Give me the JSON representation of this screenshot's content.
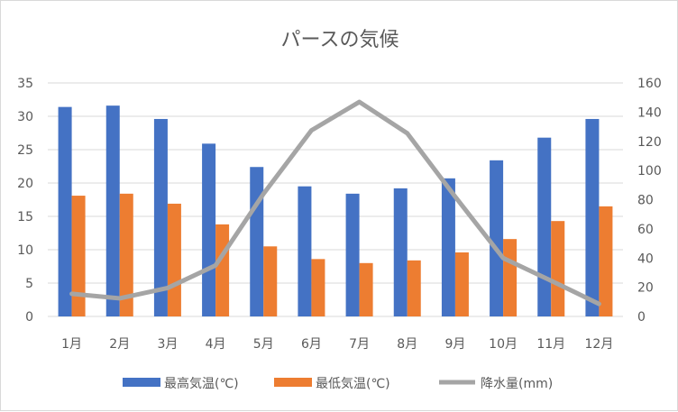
{
  "chart_data": {
    "type": "bar+line",
    "title": "パースの気候",
    "categories": [
      "1月",
      "2月",
      "3月",
      "4月",
      "5月",
      "6月",
      "7月",
      "8月",
      "9月",
      "10月",
      "11月",
      "12月"
    ],
    "series": [
      {
        "name": "最高気温(℃)",
        "type": "bar",
        "axis": "left",
        "color": "#4472c4",
        "values": [
          31.4,
          31.6,
          29.6,
          25.9,
          22.4,
          19.5,
          18.4,
          19.2,
          20.7,
          23.4,
          26.8,
          29.6
        ]
      },
      {
        "name": "最低気温(℃)",
        "type": "bar",
        "axis": "left",
        "color": "#ed7d31",
        "values": [
          18.1,
          18.4,
          16.9,
          13.8,
          10.5,
          8.6,
          8.0,
          8.4,
          9.6,
          11.6,
          14.3,
          16.5
        ]
      },
      {
        "name": "降水量(mm)",
        "type": "line",
        "axis": "right",
        "color": "#a5a5a5",
        "values": [
          15.5,
          12.4,
          19.5,
          35,
          84,
          127.5,
          147,
          125.5,
          82,
          40,
          24.5,
          8.6
        ]
      }
    ],
    "left_axis": {
      "min": 0,
      "max": 35,
      "step": 5,
      "ticks": [
        "0",
        "5",
        "10",
        "15",
        "20",
        "25",
        "30",
        "35"
      ]
    },
    "right_axis": {
      "min": 0,
      "max": 160,
      "step": 20,
      "ticks": [
        "0",
        "20",
        "40",
        "60",
        "80",
        "100",
        "120",
        "140",
        "160"
      ]
    },
    "grid": true,
    "legend_position": "bottom"
  }
}
